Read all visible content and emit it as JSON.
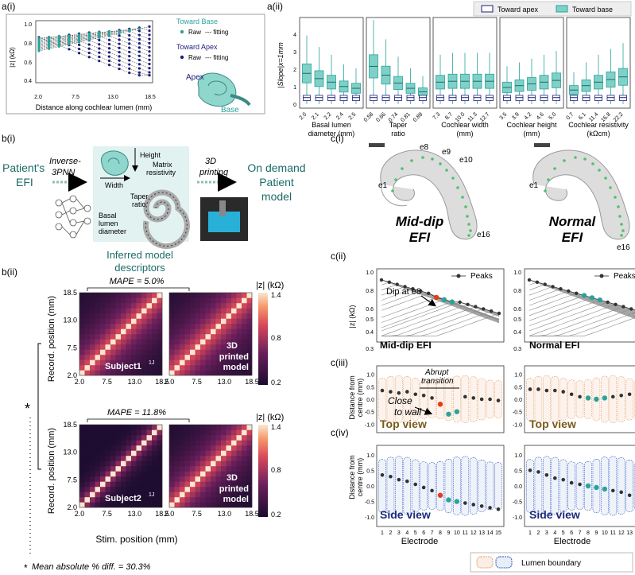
{
  "panel_labels": {
    "ai": "a(i)",
    "aii": "a(ii)",
    "bi": "b(i)",
    "bii": "b(ii)",
    "ci": "c(i)",
    "cii": "c(ii)",
    "ciii": "c(iii)",
    "civ": "c(iv)"
  },
  "colors": {
    "teal": "#2aa39a",
    "teal_light": "#7fd1c8",
    "navy": "#1c1f7a",
    "teal_dark": "#1b6b68",
    "red": "#e8391a",
    "green_dot": "#4cc26a",
    "orange_boundary": "#e0a070",
    "blue_boundary": "#3050c0"
  },
  "a_i": {
    "ylabel": "|z| (kΩ)",
    "xlabel": "Distance along cochlear lumen (mm)",
    "yticks": [
      "0.4",
      "0.6",
      "0.8",
      "1.0"
    ],
    "xticks": [
      "2.0",
      "7.5",
      "13.0",
      "18.5"
    ],
    "legend_base_title": "Toward Base",
    "legend_apex_title": "Toward Apex",
    "legend_raw": "Raw",
    "legend_fit": "--- fitting",
    "apex": "Apex",
    "base": "Base"
  },
  "a_ii": {
    "ylabel": "|Slope|x=1mm",
    "legend_apex": "Toward apex",
    "legend_base": "Toward base",
    "yticks": [
      "0",
      "1",
      "2",
      "3",
      "4"
    ],
    "subplots": [
      {
        "xlabel": "Basal lumen diameter (mm)",
        "ticks": [
          "2.0",
          "2.1",
          "2.2",
          "2.4",
          "2.5"
        ]
      },
      {
        "xlabel": "Taper ratio",
        "ticks": [
          "0.58",
          "0.66",
          "0.74",
          "0.81",
          "0.89"
        ]
      },
      {
        "xlabel": "Cochlear width (mm)",
        "ticks": [
          "7.3",
          "8.7",
          "10.0",
          "11.3",
          "12.7"
        ]
      },
      {
        "xlabel": "Cochlear height (mm)",
        "ticks": [
          "3.5",
          "3.9",
          "4.2",
          "4.6",
          "5.0"
        ]
      },
      {
        "xlabel": "Cochlear resistivity (kΩcm)",
        "ticks": [
          "0.7",
          "6.1",
          "11.4",
          "16.8",
          "22.2"
        ]
      }
    ]
  },
  "b_i": {
    "patient": "Patient's EFI",
    "step1": "Inverse-3PNN",
    "height": "Height",
    "width": "Width",
    "matrix": "Matrix resistivity",
    "taper": "Taper ratio",
    "basal": "Basal lumen diameter",
    "inferred": "Inferred model descriptors",
    "step2": "3D printing",
    "output": "On demand Patient model"
  },
  "b_ii": {
    "mape1": "MAPE = 5.0%",
    "mape2": "MAPE = 11.8%",
    "subject1": "Subject1",
    "subject2": "Subject2",
    "superscript": "1J",
    "printed": "3D printed model",
    "ylabel": "Record. position (mm)",
    "xlabel": "Stim. position (mm)",
    "ticks": [
      "2.0",
      "7.5",
      "13.0",
      "18.5"
    ],
    "cbar_label": "|z| (kΩ)",
    "cbar_ticks": [
      "1.4",
      "0.8",
      "0.2"
    ],
    "asterisk": "*",
    "footnote": "Mean absolute % diff. = 30.3%"
  },
  "c_i": {
    "middip_title": "Mid-dip EFI",
    "normal_title": "Normal EFI",
    "electrodes_left": [
      "e1",
      "e8",
      "e9",
      "e10",
      "e16"
    ],
    "electrodes_right": [
      "e1",
      "e16"
    ]
  },
  "c_ii": {
    "ylabel": "|z| (kΩ)",
    "yticks": [
      "1.0",
      "0.8",
      "0.6",
      "0.5",
      "0.4",
      "0.3"
    ],
    "legend": "Peaks",
    "dip_label": "Dip at e8",
    "left_label": "Mid-dip EFI",
    "right_label": "Normal EFI"
  },
  "c_iii": {
    "ylabel": "Distance from centre (mm)",
    "yticks": [
      "1.0",
      "0.5",
      "0.0",
      "-0.5",
      "-1.0"
    ],
    "abrupt": "Abrupt transition",
    "close": "Close to wall",
    "view": "Top view"
  },
  "c_iv": {
    "ylabel": "Distance from centre (mm)",
    "yticks": [
      "1.0",
      "0.5",
      "0.0",
      "-0.5",
      "-1.0"
    ],
    "view": "Side view",
    "xlabel": "Electrode",
    "xticks": [
      "1",
      "2",
      "3",
      "4",
      "5",
      "6",
      "7",
      "8",
      "9",
      "10",
      "11",
      "12",
      "13",
      "14",
      "15"
    ]
  },
  "boundary_legend": "Lumen boundary"
}
